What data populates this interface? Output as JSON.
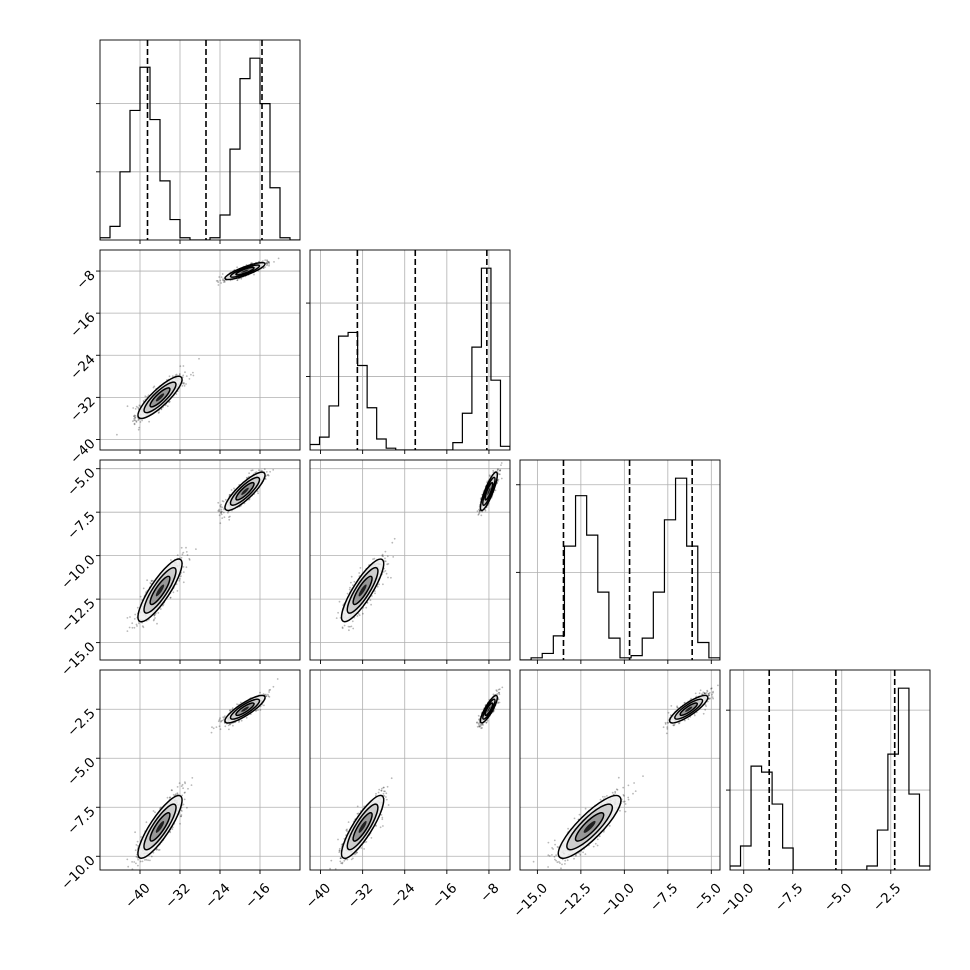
{
  "chart_data": {
    "type": "corner",
    "n_params": 4,
    "show_axis_labels": false,
    "grid": true,
    "histogram_style": "step",
    "contour_levels": 3,
    "quantile_line_style": "dashed",
    "params": [
      {
        "range": [
          -48,
          -8
        ],
        "ticks": [
          -40,
          -32,
          -24,
          -16
        ],
        "tick_labels": [
          "−40",
          "−32",
          "−24",
          "−16"
        ],
        "quantiles": [
          -38.5,
          -26.8,
          -15.6
        ],
        "modes": [
          {
            "center": -36,
            "sd": 2.2
          },
          {
            "center": -19,
            "sd": 2.0
          }
        ],
        "hist_counts": [
          1,
          6,
          30,
          57,
          76,
          53,
          26,
          9,
          1,
          0,
          0,
          1,
          11,
          40,
          71,
          80,
          60,
          23,
          1,
          0
        ]
      },
      {
        "range": [
          -42,
          -4
        ],
        "ticks": [
          -40,
          -32,
          -24,
          -16,
          -8
        ],
        "tick_labels": [
          "−40",
          "−32",
          "−24",
          "−16",
          "−8"
        ],
        "quantiles": [
          -33,
          -22,
          -8.4
        ],
        "modes": [
          {
            "center": -32,
            "sd": 2.0
          },
          {
            "center": -8,
            "sd": 0.8
          }
        ],
        "hist_counts": [
          3,
          7,
          24,
          62,
          64,
          46,
          23,
          6,
          1,
          0,
          0,
          0,
          0,
          0,
          0,
          4,
          20,
          56,
          99,
          38,
          2
        ]
      },
      {
        "range": [
          -16,
          -4.5
        ],
        "ticks": [
          -15.0,
          -12.5,
          -10.0,
          -7.5,
          -5.0
        ],
        "tick_labels": [
          "−15.0",
          "−12.5",
          "−10.0",
          "−7.5",
          "−5.0"
        ],
        "quantiles": [
          -13.5,
          -9.7,
          -6.1
        ],
        "modes": [
          {
            "center": -12,
            "sd": 0.9
          },
          {
            "center": -6.3,
            "sd": 0.55
          }
        ],
        "hist_counts": [
          0,
          1,
          3,
          11,
          52,
          75,
          57,
          31,
          10,
          1,
          2,
          10,
          31,
          64,
          83,
          52,
          8,
          1
        ]
      },
      {
        "range": [
          -10.7,
          -0.5
        ],
        "ticks": [
          -10.0,
          -7.5,
          -5.0,
          -2.5
        ],
        "tick_labels": [
          "−10.0",
          "−7.5",
          "−5.0",
          "−2.5"
        ],
        "quantiles": [
          -8.7,
          -5.3,
          -2.3
        ],
        "modes": [
          {
            "center": -8.5,
            "sd": 0.8
          },
          {
            "center": -2.5,
            "sd": 0.35
          }
        ],
        "hist_counts": [
          2,
          12,
          52,
          49,
          33,
          11,
          0,
          0,
          0,
          0,
          0,
          0,
          0,
          2,
          20,
          58,
          91,
          38,
          2
        ]
      }
    ]
  }
}
